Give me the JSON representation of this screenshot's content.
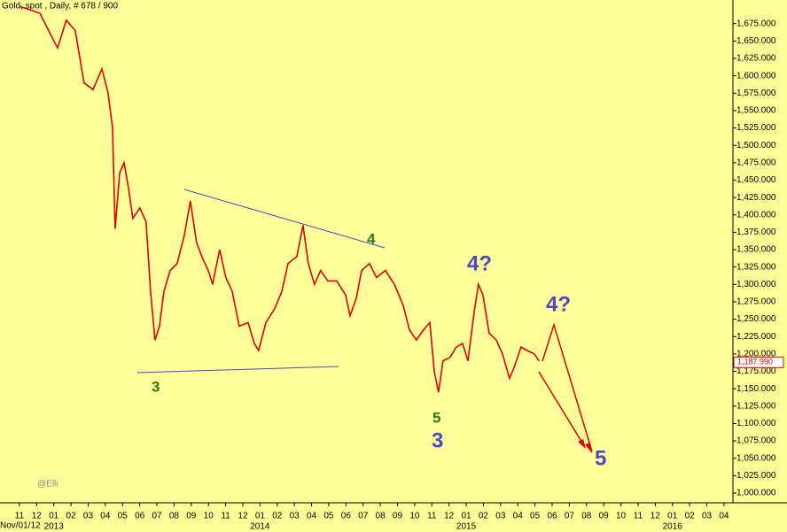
{
  "chart_data": {
    "type": "line",
    "title": "Gold, spot , Daily, # 678 / 900",
    "watermark": "@Elli",
    "start_label": "Nov/01/12",
    "x": [
      0,
      1.19,
      1.7,
      2.22,
      2.73,
      3.25,
      3.76,
      4.28,
      4.8,
      5.16,
      5.42,
      5.57,
      5.83,
      6.09,
      6.34,
      6.6,
      7.01,
      7.37,
      7.63,
      7.89,
      8.15,
      8.41,
      8.77,
      9.18,
      9.59,
      9.95,
      10.31,
      10.62,
      10.99,
      11.24,
      11.65,
      12.01,
      12.38,
      12.79,
      13.31,
      13.67,
      13.92,
      14.34,
      14.85,
      15.27,
      15.63,
      16.14,
      16.5,
      16.81,
      17.17,
      17.53,
      17.95,
      18.46,
      18.98,
      19.24,
      19.6,
      19.91,
      20.37,
      20.78,
      21.3,
      21.82,
      22.33,
      22.69,
      23.1,
      23.52,
      23.88,
      24.14,
      24.39,
      24.65,
      25.06,
      25.43,
      25.79,
      26.1,
      26.46,
      26.71,
      26.97,
      27.33,
      27.75,
      28.11,
      28.52,
      28.78,
      29.19,
      29.55,
      29.96,
      30.24
    ],
    "series": [
      {
        "name": "Gold",
        "color": "#e00000",
        "values": [
          1700,
          1690,
          1665,
          1640,
          1680,
          1665,
          1590,
          1580,
          1610,
          1575,
          1525,
          1380,
          1460,
          1475,
          1440,
          1395,
          1410,
          1390,
          1290,
          1220,
          1240,
          1290,
          1320,
          1330,
          1370,
          1420,
          1360,
          1340,
          1320,
          1300,
          1350,
          1310,
          1290,
          1240,
          1245,
          1215,
          1205,
          1245,
          1265,
          1290,
          1330,
          1340,
          1385,
          1330,
          1300,
          1320,
          1305,
          1305,
          1285,
          1255,
          1280,
          1320,
          1330,
          1310,
          1320,
          1300,
          1270,
          1235,
          1220,
          1235,
          1245,
          1175,
          1145,
          1190,
          1195,
          1210,
          1215,
          1190,
          1260,
          1300,
          1285,
          1230,
          1220,
          1200,
          1165,
          1180,
          1210,
          1205,
          1200,
          1190
        ]
      }
    ],
    "last_price": {
      "value": 1187.99,
      "label": "1,187.990"
    },
    "xlim": [
      -1.13,
      41.52
    ],
    "ylim": [
      986,
      1709
    ],
    "xticks": [
      {
        "value": 0,
        "label": "11"
      },
      {
        "value": 1,
        "label": "12"
      },
      {
        "value": 2,
        "label": "01"
      },
      {
        "value": 3,
        "label": "02"
      },
      {
        "value": 4,
        "label": "03"
      },
      {
        "value": 5,
        "label": "04"
      },
      {
        "value": 6,
        "label": "05"
      },
      {
        "value": 7,
        "label": "06"
      },
      {
        "value": 8,
        "label": "07"
      },
      {
        "value": 9,
        "label": "08"
      },
      {
        "value": 10,
        "label": "09"
      },
      {
        "value": 11,
        "label": "10"
      },
      {
        "value": 12,
        "label": "11"
      },
      {
        "value": 13,
        "label": "12"
      },
      {
        "value": 14,
        "label": "01"
      },
      {
        "value": 15,
        "label": "02"
      },
      {
        "value": 16,
        "label": "03"
      },
      {
        "value": 17,
        "label": "04"
      },
      {
        "value": 18,
        "label": "05"
      },
      {
        "value": 19,
        "label": "06"
      },
      {
        "value": 20,
        "label": "07"
      },
      {
        "value": 21,
        "label": "08"
      },
      {
        "value": 22,
        "label": "09"
      },
      {
        "value": 23,
        "label": "10"
      },
      {
        "value": 24,
        "label": "11"
      },
      {
        "value": 25,
        "label": "12"
      },
      {
        "value": 26,
        "label": "01"
      },
      {
        "value": 27,
        "label": "02"
      },
      {
        "value": 28,
        "label": "03"
      },
      {
        "value": 29,
        "label": "04"
      },
      {
        "value": 30,
        "label": "05"
      },
      {
        "value": 31,
        "label": "06"
      },
      {
        "value": 32,
        "label": "07"
      },
      {
        "value": 33,
        "label": "08"
      },
      {
        "value": 34,
        "label": "09"
      },
      {
        "value": 35,
        "label": "10"
      },
      {
        "value": 36,
        "label": "11"
      },
      {
        "value": 37,
        "label": "12"
      },
      {
        "value": 38,
        "label": "01"
      },
      {
        "value": 39,
        "label": "02"
      },
      {
        "value": 40,
        "label": "03"
      },
      {
        "value": 41,
        "label": "04"
      }
    ],
    "x_year_labels": [
      {
        "value": 2,
        "label": "2013"
      },
      {
        "value": 14,
        "label": "2014"
      },
      {
        "value": 26,
        "label": "2015"
      },
      {
        "value": 38,
        "label": "2016"
      }
    ],
    "yticks": [
      {
        "value": 1000,
        "label": "1,000.000"
      },
      {
        "value": 1025,
        "label": "1,025.000"
      },
      {
        "value": 1050,
        "label": "1,050.000"
      },
      {
        "value": 1075,
        "label": "1,075.000"
      },
      {
        "value": 1100,
        "label": "1,100.000"
      },
      {
        "value": 1125,
        "label": "1,125.000"
      },
      {
        "value": 1150,
        "label": "1,150.000"
      },
      {
        "value": 1175,
        "label": "1,175.000"
      },
      {
        "value": 1200,
        "label": "1,200.000"
      },
      {
        "value": 1225,
        "label": "1,225.000"
      },
      {
        "value": 1250,
        "label": "1,250.000"
      },
      {
        "value": 1275,
        "label": "1,275.000"
      },
      {
        "value": 1300,
        "label": "1,300.000"
      },
      {
        "value": 1325,
        "label": "1,325.000"
      },
      {
        "value": 1350,
        "label": "1,350.000"
      },
      {
        "value": 1375,
        "label": "1,375.000"
      },
      {
        "value": 1400,
        "label": "1,400.000"
      },
      {
        "value": 1425,
        "label": "1,425.000"
      },
      {
        "value": 1450,
        "label": "1,450.000"
      },
      {
        "value": 1475,
        "label": "1,475.000"
      },
      {
        "value": 1500,
        "label": "1,500.000"
      },
      {
        "value": 1525,
        "label": "1,525.000"
      },
      {
        "value": 1550,
        "label": "1,550.000"
      },
      {
        "value": 1575,
        "label": "1,575.000"
      },
      {
        "value": 1600,
        "label": "1,600.000"
      },
      {
        "value": 1625,
        "label": "1,625.000"
      },
      {
        "value": 1650,
        "label": "1,650.000"
      },
      {
        "value": 1675,
        "label": "1,675.000"
      }
    ],
    "annotations": [
      "3",
      "4",
      "5",
      "3",
      "4?",
      "4?",
      "5"
    ]
  }
}
